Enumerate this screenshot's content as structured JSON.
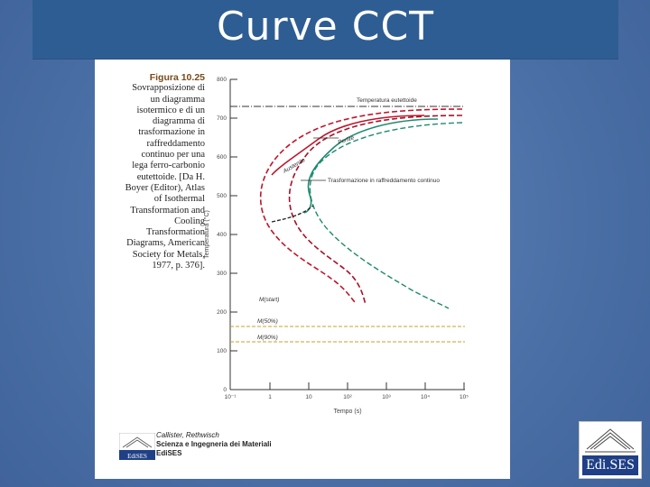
{
  "slide": {
    "title": "Curve CCT"
  },
  "caption": {
    "label": "Figura 10.25",
    "lines": [
      "Sovrapposizione di",
      "un diagramma",
      "isotermico e di un",
      "diagramma di",
      "trasformazione in",
      "raffreddamento",
      "continuo per una",
      "lega ferro-carbonio",
      "eutettoide. [Da H.",
      "Boyer (Editor), Atlas",
      "of Isothermal",
      "Transformation and",
      "Cooling",
      "Transformation",
      "Diagrams, American",
      "Society for Metals,",
      "1977, p. 376]."
    ]
  },
  "diagram": {
    "y_axis_label": "Temperatura (°C)",
    "x_axis_label": "Tempo (s)",
    "y_ticks": [
      "800",
      "700",
      "600",
      "500",
      "400",
      "300",
      "200",
      "100",
      "0"
    ],
    "x_ticks": [
      "10⁻¹",
      "1",
      "10",
      "10²",
      "10³",
      "10⁴",
      "10⁵"
    ],
    "labels": {
      "eutectoid": "Temperatura eutettoide",
      "perlite": "Perlite",
      "austenite": "Austenite",
      "continuous": "Trasformazione in raffreddamento continuo",
      "m_start": "M(start)",
      "m50": "M(50%)",
      "m90": "M(90%)"
    },
    "colors": {
      "isothermal_start": "#c0152a",
      "isothermal_end": "#a8102a",
      "continuous": "#1e8a6e",
      "martensite_lines": "#c9a227",
      "eutectoid_line": "#333333"
    }
  },
  "footer": {
    "authors": "Callister, Rethwisch",
    "book": "Scienza e Ingegneria dei Materiali",
    "publisher": "EdiSES",
    "logo_text": "EdiSES"
  },
  "corner_logo": {
    "text": "Edi.SES"
  }
}
